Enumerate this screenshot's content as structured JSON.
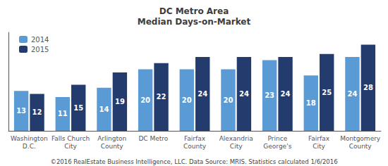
{
  "chart_data": {
    "type": "bar",
    "title": "DC Metro Area\nMedian Days-on-Market",
    "categories": [
      "Washington\nD.C.",
      "Falls Church\nCity",
      "Arlington\nCounty",
      "DC Metro",
      "Fairfax\nCounty",
      "Alexandria\nCity",
      "Prince\nGeorge's",
      "Fairfax\nCity",
      "Montgomery\nCounty"
    ],
    "series": [
      {
        "name": "2014",
        "color": "#5b9bd5",
        "values": [
          13,
          11,
          14,
          20,
          20,
          20,
          23,
          18,
          24
        ]
      },
      {
        "name": "2015",
        "color": "#243b6e",
        "values": [
          12,
          15,
          19,
          22,
          24,
          24,
          24,
          25,
          28
        ]
      }
    ],
    "ylim": [
      0,
      32
    ],
    "yticks": [],
    "tick_labels": "x",
    "grid": false,
    "legend": "upper left",
    "data_labels": true,
    "footer": "©2016 RealEstate Business Intelligence, LLC. Data Source: MRIS. Statistics calculated 1/6/2016"
  }
}
